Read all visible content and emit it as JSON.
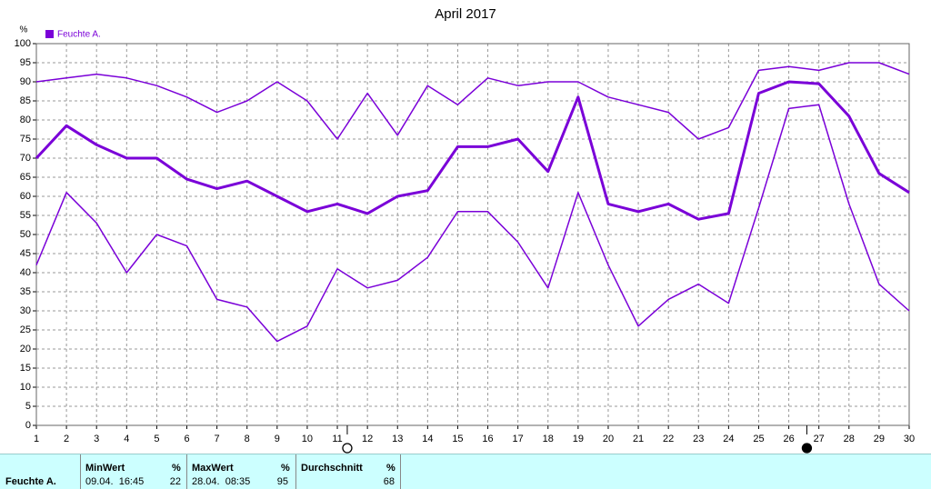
{
  "chart_data": {
    "type": "line",
    "title": "April 2017",
    "y_label": "%",
    "legend": {
      "name": "Feuchte A.",
      "color": "#7a00d8"
    },
    "x": [
      1,
      2,
      3,
      4,
      5,
      6,
      7,
      8,
      9,
      10,
      11,
      12,
      13,
      14,
      15,
      16,
      17,
      18,
      19,
      20,
      21,
      22,
      23,
      24,
      25,
      26,
      27,
      28,
      29,
      30
    ],
    "xlim": [
      1,
      30
    ],
    "xticks": [
      1,
      2,
      3,
      4,
      5,
      6,
      7,
      8,
      9,
      10,
      11,
      12,
      13,
      14,
      15,
      16,
      17,
      18,
      19,
      20,
      21,
      22,
      23,
      24,
      25,
      26,
      27,
      28,
      29,
      30
    ],
    "ylim": [
      0,
      100
    ],
    "yticks": [
      0,
      5,
      10,
      15,
      20,
      25,
      30,
      35,
      40,
      45,
      50,
      55,
      60,
      65,
      70,
      75,
      80,
      85,
      90,
      95,
      100
    ],
    "grid": true,
    "series": [
      {
        "color": "#7a00d8",
        "width": 1.5,
        "values": [
          90,
          91,
          92,
          91,
          89,
          86,
          82,
          85,
          90,
          85,
          75,
          87,
          76,
          89,
          84,
          91,
          89,
          90,
          90,
          86,
          84,
          82,
          75,
          78,
          93,
          94,
          93,
          95,
          95,
          92
        ]
      },
      {
        "color": "#7a00d8",
        "width": 3,
        "values": [
          70,
          78.5,
          73.5,
          70,
          70,
          64.5,
          62,
          64,
          60,
          56,
          58,
          55.5,
          60,
          61.5,
          73,
          73,
          75,
          66.5,
          86,
          58,
          56,
          58,
          54,
          55.5,
          87,
          90,
          89.5,
          81,
          66,
          61
        ]
      },
      {
        "color": "#7a00d8",
        "width": 1.5,
        "values": [
          42,
          61,
          53,
          40,
          50,
          47,
          33,
          31,
          22,
          26,
          41,
          36,
          38,
          44,
          56,
          56,
          48,
          36,
          61,
          42,
          26,
          33,
          37,
          32,
          57,
          83,
          84,
          58,
          37,
          30
        ]
      }
    ],
    "markers": [
      {
        "x": 11.33,
        "filled": false
      },
      {
        "x": 26.6,
        "filled": true
      }
    ]
  },
  "summary": {
    "row_label": "Feuchte A.",
    "min": {
      "header": "MinWert",
      "unit": "%",
      "time": "09.04.  16:45",
      "value": "22"
    },
    "max": {
      "header": "MaxWert",
      "unit": "%",
      "time": "28.04.  08:35",
      "value": "95"
    },
    "avg": {
      "header": "Durchschnitt",
      "unit": "%",
      "value": "68"
    }
  }
}
